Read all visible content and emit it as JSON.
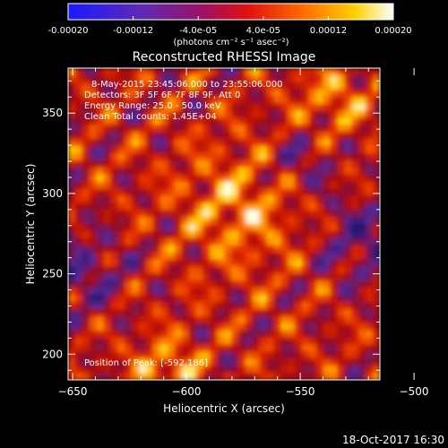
{
  "chart_data": {
    "type": "heatmap",
    "title": "Reconstructed RHESSI Image",
    "colorbar": {
      "min": -0.0002,
      "max": 0.0002,
      "ticks": [
        "-0.00020",
        "-0.00012",
        "-4.0e-05",
        "4.0e-05",
        "0.00012",
        "0.00020"
      ],
      "tick_values": [
        -0.0002,
        -0.00012,
        -4e-05,
        4e-05,
        0.00012,
        0.0002
      ],
      "unit_label": "(photons cm⁻² s⁻¹ asec⁻²)",
      "colormap": "rainbow-hot (blue-purple-red-orange-yellow-white)"
    },
    "xlabel": "Heliocentric X (arcsec)",
    "ylabel": "Heliocentric Y (arcsec)",
    "xlim": [
      -652,
      -515
    ],
    "ylim": [
      184,
      378
    ],
    "xticks": [
      -650,
      -600,
      -550,
      -500
    ],
    "xtick_labels": [
      "−650",
      "−600",
      "−550",
      "−500"
    ],
    "yticks": [
      200,
      250,
      300,
      350
    ],
    "ytick_labels": [
      "200",
      "250",
      "300",
      "350"
    ],
    "annotations": [
      "8-May-2015 23:45:06.000 to 23:55:06.000",
      "Detectors: 3F 5F 6F 7F 8F 9F, Att 0",
      "Energy Range: 25.0 - 50.0 keV",
      "Clean     Total counts: 1.45E+04"
    ],
    "peak_label": "Position of Peak:  [-592,186]",
    "peak": [
      -592,
      186
    ],
    "grid": false
  },
  "footer": {
    "timestamp": "18-Oct-2017 16:30"
  }
}
